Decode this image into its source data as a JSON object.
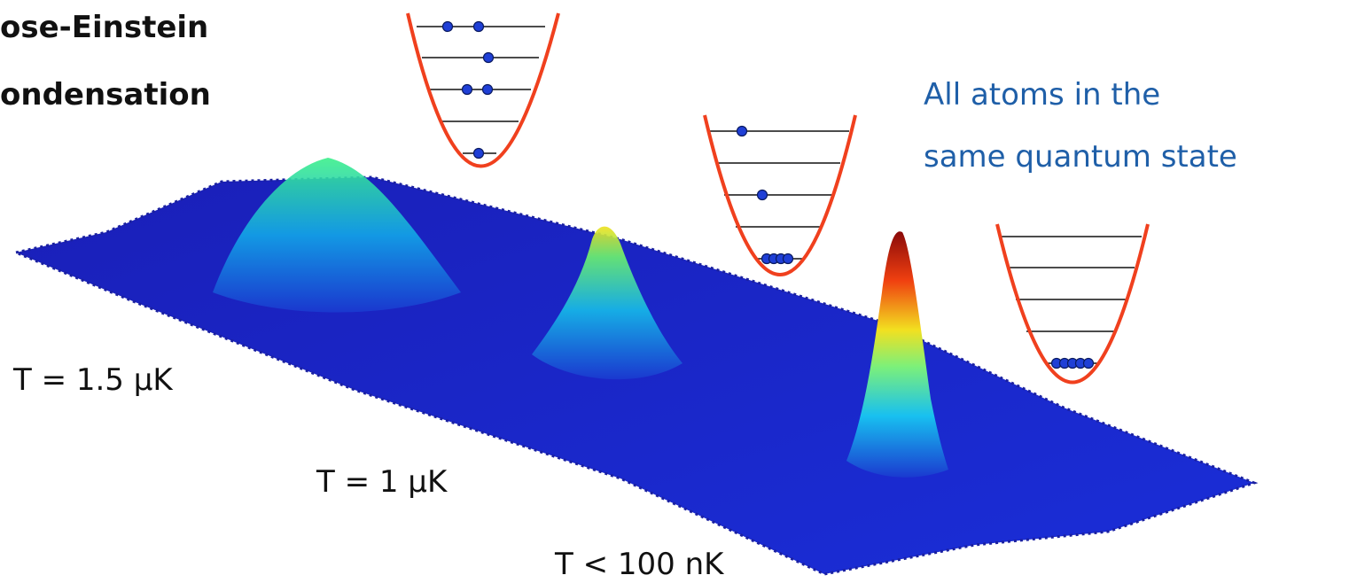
{
  "title": [
    "ose-Einstein",
    "ondensation"
  ],
  "labels": {
    "t1": "T = 1.5 μK",
    "t2": "T = 1 μK",
    "t3": "T < 100 nK"
  },
  "note": [
    "All atoms in the",
    "same quantum state"
  ]
}
